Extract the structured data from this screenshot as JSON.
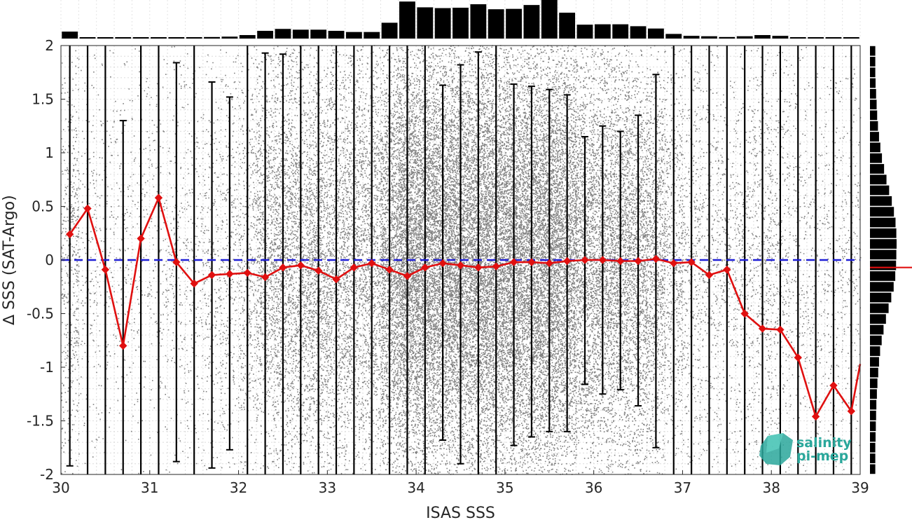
{
  "chart_data": {
    "type": "scatter",
    "xlabel": "ISAS SSS",
    "ylabel": "∆ SSS (SAT-Argo)",
    "xlim": [
      30,
      39
    ],
    "ylim": [
      -2,
      2
    ],
    "x_ticks": [
      "30",
      "31",
      "32",
      "33",
      "34",
      "35",
      "36",
      "37",
      "38",
      "39"
    ],
    "y_ticks": [
      "2",
      "1.5",
      "1",
      "0.5",
      "0",
      "-0.5",
      "-1",
      "-1.5",
      "-2"
    ],
    "grid": true,
    "zero_line": {
      "y": 0,
      "color": "#1f1fd6",
      "style": "dashed"
    },
    "mean_series": {
      "color": "#e01010",
      "marker": "diamond",
      "x": [
        30.1,
        30.3,
        30.5,
        30.7,
        30.9,
        31.1,
        31.3,
        31.5,
        31.7,
        31.9,
        32.1,
        32.3,
        32.5,
        32.7,
        32.9,
        33.1,
        33.3,
        33.5,
        33.7,
        33.9,
        34.1,
        34.3,
        34.5,
        34.7,
        34.9,
        35.1,
        35.3,
        35.5,
        35.7,
        35.9,
        36.1,
        36.3,
        36.5,
        36.7,
        36.9,
        37.1,
        37.3,
        37.5,
        37.7,
        37.9,
        38.1,
        38.3,
        38.5,
        38.7,
        38.9
      ],
      "y": [
        0.24,
        0.48,
        -0.09,
        -0.8,
        0.2,
        0.58,
        -0.02,
        -0.22,
        -0.14,
        -0.13,
        -0.12,
        -0.16,
        -0.07,
        -0.05,
        -0.1,
        -0.18,
        -0.07,
        -0.03,
        -0.09,
        -0.15,
        -0.07,
        -0.03,
        -0.05,
        -0.07,
        -0.06,
        -0.02,
        -0.02,
        -0.03,
        -0.01,
        0.0,
        0.0,
        -0.01,
        -0.01,
        0.01,
        -0.03,
        -0.02,
        -0.14,
        -0.09,
        -0.5,
        -0.64,
        -0.65,
        -0.91,
        -1.46,
        -1.17,
        -1.41
      ],
      "tail_to": [
        39.0,
        -0.97
      ]
    },
    "std_bars": {
      "x": [
        30.1,
        30.3,
        30.5,
        30.7,
        30.9,
        31.1,
        31.3,
        31.5,
        31.7,
        31.9,
        32.1,
        32.3,
        32.5,
        32.7,
        32.9,
        33.1,
        33.3,
        33.5,
        33.7,
        33.9,
        34.1,
        34.3,
        34.5,
        34.7,
        34.9,
        35.1,
        35.3,
        35.5,
        35.7,
        35.9,
        36.1,
        36.3,
        36.5,
        36.7,
        36.9,
        37.1,
        37.3,
        37.5,
        37.7,
        37.9,
        38.1,
        38.3,
        38.5,
        38.7,
        38.9
      ],
      "low": [
        -1.92,
        -2.5,
        -2.5,
        -2.5,
        -2.5,
        -2.5,
        -1.88,
        -2.5,
        -1.94,
        -1.77,
        -2.5,
        -2.5,
        -2.5,
        -2.5,
        -2.5,
        -2.5,
        -2.5,
        -2.5,
        -2.5,
        -2.5,
        -2.5,
        -1.68,
        -1.9,
        -2.5,
        -2.5,
        -1.73,
        -1.65,
        -1.6,
        -1.6,
        -1.16,
        -1.25,
        -1.21,
        -1.36,
        -1.75,
        -2.5,
        -2.5,
        -2.5,
        -2.5,
        -2.5,
        -2.5,
        -2.5,
        -2.5,
        -2.5,
        -2.5,
        -2.5
      ],
      "high": [
        2.5,
        2.5,
        2.5,
        1.3,
        2.5,
        2.5,
        1.84,
        2.5,
        1.66,
        1.52,
        2.5,
        1.93,
        1.92,
        2.5,
        2.5,
        2.5,
        2.5,
        2.5,
        2.5,
        2.5,
        2.5,
        1.63,
        1.82,
        1.94,
        2.5,
        1.64,
        1.62,
        1.59,
        1.54,
        1.15,
        1.25,
        1.2,
        1.35,
        1.73,
        2.5,
        2.5,
        2.5,
        2.5,
        2.5,
        2.5,
        2.5,
        2.5,
        2.5,
        2.5,
        2.5
      ]
    },
    "top_histogram": {
      "x": [
        30.1,
        30.3,
        30.5,
        30.7,
        30.9,
        31.1,
        31.3,
        31.5,
        31.7,
        31.9,
        32.1,
        32.3,
        32.5,
        32.7,
        32.9,
        33.1,
        33.3,
        33.5,
        33.7,
        33.9,
        34.1,
        34.3,
        34.5,
        34.7,
        34.9,
        35.1,
        35.3,
        35.5,
        35.7,
        35.9,
        36.1,
        36.3,
        36.5,
        36.7,
        36.9,
        37.1,
        37.3,
        37.5,
        37.7,
        37.9,
        38.1,
        38.3,
        38.5,
        38.7,
        38.9
      ],
      "relative_height": [
        0.18,
        0.02,
        0.01,
        0.01,
        0.01,
        0.01,
        0.02,
        0.03,
        0.04,
        0.05,
        0.09,
        0.2,
        0.25,
        0.23,
        0.23,
        0.2,
        0.17,
        0.17,
        0.41,
        0.96,
        0.81,
        0.79,
        0.8,
        0.89,
        0.76,
        0.77,
        0.87,
        1.0,
        0.67,
        0.36,
        0.37,
        0.37,
        0.32,
        0.26,
        0.12,
        0.07,
        0.06,
        0.04,
        0.06,
        0.09,
        0.07,
        0.03,
        0.03,
        0.03,
        0.03
      ]
    },
    "right_histogram": {
      "y": [
        1.95,
        1.85,
        1.75,
        1.65,
        1.55,
        1.45,
        1.35,
        1.25,
        1.15,
        1.05,
        0.95,
        0.85,
        0.75,
        0.65,
        0.55,
        0.45,
        0.35,
        0.25,
        0.15,
        0.05,
        -0.05,
        -0.15,
        -0.25,
        -0.35,
        -0.45,
        -0.55,
        -0.65,
        -0.75,
        -0.85,
        -0.95,
        -1.05,
        -1.15,
        -1.25,
        -1.35,
        -1.45,
        -1.55,
        -1.65,
        -1.75,
        -1.85,
        -1.95
      ],
      "relative_width": [
        0.2,
        0.2,
        0.2,
        0.21,
        0.23,
        0.25,
        0.27,
        0.3,
        0.34,
        0.39,
        0.45,
        0.53,
        0.62,
        0.72,
        0.82,
        0.9,
        0.96,
        0.99,
        1.0,
        0.99,
        0.98,
        0.95,
        0.89,
        0.8,
        0.7,
        0.6,
        0.51,
        0.44,
        0.38,
        0.34,
        0.31,
        0.28,
        0.26,
        0.24,
        0.23,
        0.22,
        0.21,
        0.2,
        0.2,
        0.2
      ],
      "mean_marker_y": -0.07,
      "mean_marker_color": "#e01010"
    },
    "scatter_density": {
      "color": "#808080",
      "x_centers": [
        30.1,
        30.3,
        30.5,
        30.7,
        30.9,
        31.1,
        31.3,
        31.5,
        31.7,
        31.9,
        32.1,
        32.3,
        32.5,
        32.7,
        32.9,
        33.1,
        33.3,
        33.5,
        33.7,
        33.9,
        34.1,
        34.3,
        34.5,
        34.7,
        34.9,
        35.1,
        35.3,
        35.5,
        35.7,
        35.9,
        36.1,
        36.3,
        36.5,
        36.7,
        36.9,
        37.1,
        37.3,
        37.5,
        37.7,
        37.9,
        38.1,
        38.3,
        38.5,
        38.7,
        38.9
      ],
      "relative_density": [
        0.18,
        0.06,
        0.05,
        0.05,
        0.05,
        0.06,
        0.07,
        0.08,
        0.1,
        0.12,
        0.18,
        0.32,
        0.4,
        0.4,
        0.42,
        0.38,
        0.36,
        0.38,
        0.7,
        1.0,
        0.95,
        0.92,
        0.92,
        0.95,
        0.9,
        0.9,
        0.92,
        0.95,
        0.78,
        0.55,
        0.55,
        0.55,
        0.48,
        0.4,
        0.22,
        0.14,
        0.12,
        0.1,
        0.12,
        0.15,
        0.12,
        0.08,
        0.07,
        0.07,
        0.07
      ]
    }
  },
  "logo": {
    "line1": "salinity",
    "line2": "pi-mep",
    "color": "#2aa79b"
  }
}
